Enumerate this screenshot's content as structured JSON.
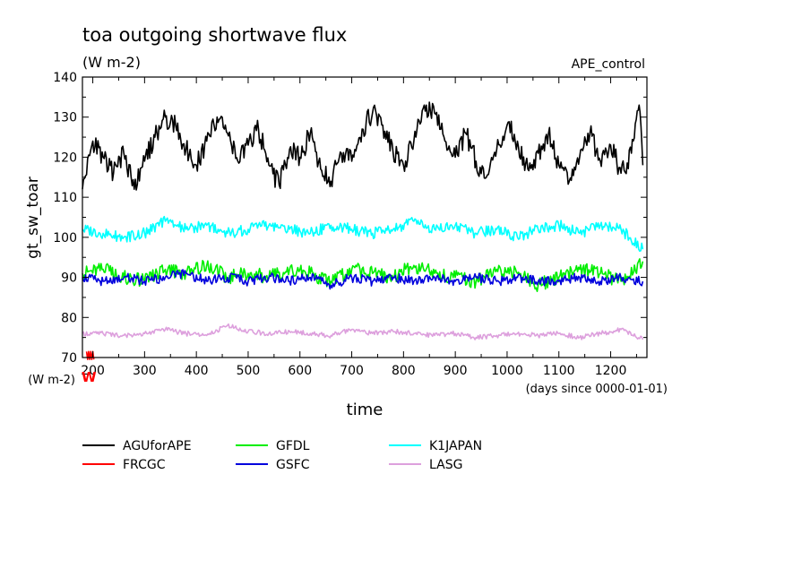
{
  "chart_data": {
    "type": "line",
    "title": "toa outgoing shortwave flux",
    "subtitle": "(W m-2)",
    "experiment": "APE_control",
    "ylabel": "gt_sw_toar",
    "xlabel": "time",
    "x_unit": "(days since 0000-01-01)",
    "y_unit": "(W m-2)",
    "frcgc_glyph": "W",
    "xlim": [
      180,
      1270
    ],
    "ylim": [
      70,
      140
    ],
    "xticks": [
      200,
      300,
      400,
      500,
      600,
      700,
      800,
      900,
      1000,
      1100,
      1200
    ],
    "yticks": [
      70,
      80,
      90,
      100,
      110,
      120,
      130,
      140
    ],
    "grid": false,
    "legend_position": "bottom",
    "series": [
      {
        "name": "AGUforAPE",
        "color": "#000000",
        "x": [
          180,
          200,
          220,
          240,
          260,
          280,
          300,
          320,
          340,
          360,
          380,
          400,
          420,
          440,
          460,
          480,
          500,
          520,
          540,
          560,
          580,
          600,
          620,
          640,
          660,
          680,
          700,
          720,
          740,
          760,
          780,
          800,
          820,
          840,
          860,
          880,
          900,
          920,
          940,
          960,
          980,
          1000,
          1020,
          1040,
          1060,
          1080,
          1100,
          1120,
          1140,
          1160,
          1180,
          1200,
          1220,
          1240,
          1255,
          1262
        ],
        "y": [
          112,
          124,
          120,
          116,
          121,
          112,
          119,
          125,
          130,
          128,
          122,
          118,
          124,
          130,
          126,
          119,
          123,
          127,
          118,
          113,
          122,
          120,
          126,
          117,
          114,
          121,
          119,
          127,
          131,
          128,
          121,
          118,
          124,
          133,
          131,
          124,
          120,
          126,
          119,
          115,
          122,
          128,
          124,
          117,
          121,
          126,
          118,
          114,
          120,
          126,
          119,
          123,
          116,
          121,
          133,
          118
        ]
      },
      {
        "name": "GFDL",
        "color": "#00ee00",
        "x": [
          180,
          220,
          260,
          300,
          340,
          380,
          420,
          460,
          500,
          540,
          580,
          620,
          660,
          700,
          740,
          780,
          820,
          860,
          900,
          940,
          980,
          1020,
          1060,
          1100,
          1140,
          1180,
          1220,
          1262
        ],
        "y": [
          91,
          92,
          90,
          89,
          92,
          91,
          93,
          90,
          91,
          90,
          92,
          91,
          89,
          92,
          91,
          90,
          93,
          91,
          90,
          89,
          92,
          91,
          88,
          90,
          92,
          91,
          89,
          94
        ]
      },
      {
        "name": "K1JAPAN",
        "color": "#00ffff",
        "x": [
          180,
          220,
          260,
          300,
          340,
          380,
          420,
          460,
          500,
          540,
          580,
          620,
          660,
          700,
          740,
          780,
          820,
          860,
          900,
          940,
          980,
          1020,
          1060,
          1100,
          1140,
          1180,
          1220,
          1262
        ],
        "y": [
          102,
          101,
          100,
          101,
          104,
          102,
          103,
          101,
          102,
          103,
          102,
          101,
          103,
          102,
          101,
          102,
          104,
          102,
          103,
          101,
          102,
          100,
          102,
          103,
          101,
          103,
          102,
          97
        ]
      },
      {
        "name": "FRCGC",
        "color": "#ff0000",
        "x": [
          188,
          190,
          192,
          194,
          196,
          198,
          200,
          202
        ],
        "y": [
          71.5,
          69.5,
          71.5,
          69.5,
          71.5,
          69.5,
          71.5,
          69.5
        ]
      },
      {
        "name": "GSFC",
        "color": "#0000dd",
        "x": [
          180,
          220,
          260,
          300,
          340,
          380,
          420,
          460,
          500,
          540,
          580,
          620,
          660,
          700,
          740,
          780,
          820,
          860,
          900,
          940,
          980,
          1020,
          1060,
          1100,
          1140,
          1180,
          1220,
          1262
        ],
        "y": [
          90,
          89,
          90,
          89,
          90,
          91,
          89,
          90,
          89,
          90,
          89,
          90,
          88,
          90,
          89,
          90,
          89,
          90,
          89,
          90,
          89,
          90,
          89,
          89,
          90,
          89,
          90,
          89
        ]
      },
      {
        "name": "LASG",
        "color": "#dda0dd",
        "x": [
          180,
          220,
          260,
          300,
          340,
          380,
          420,
          460,
          500,
          540,
          580,
          620,
          660,
          700,
          740,
          780,
          820,
          860,
          900,
          940,
          980,
          1020,
          1060,
          1100,
          1140,
          1180,
          1220,
          1262
        ],
        "y": [
          76,
          76,
          75.5,
          76,
          77,
          76,
          75.5,
          78,
          76.5,
          76,
          76.5,
          76,
          75.5,
          77,
          76,
          76.5,
          76,
          75.5,
          76,
          75,
          75.5,
          76,
          75.5,
          76,
          75,
          76,
          77,
          74.5
        ]
      }
    ]
  }
}
